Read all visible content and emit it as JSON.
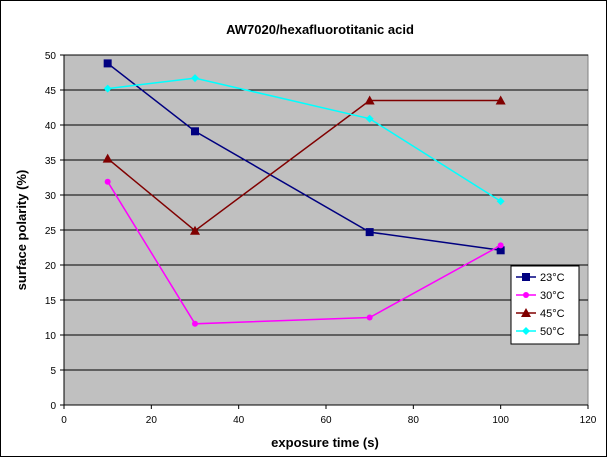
{
  "chart_data": {
    "type": "line",
    "title": "AW7020/hexafluorotitanic acid",
    "xlabel": "exposure time (s)",
    "ylabel": "surface polarity (%)",
    "xlim": [
      0,
      120
    ],
    "ylim": [
      0,
      50
    ],
    "xticks": [
      "0",
      "20",
      "40",
      "60",
      "80",
      "100",
      "120"
    ],
    "yticks": [
      "0",
      "5",
      "10",
      "15",
      "20",
      "25",
      "30",
      "35",
      "40",
      "45",
      "50"
    ],
    "grid": "horizontal",
    "plot_background": "#c0c0c0",
    "legend_position": "right",
    "series": [
      {
        "name": "23°C",
        "color": "#000080",
        "marker": "square",
        "x": [
          10,
          30,
          70,
          100
        ],
        "y": [
          48.8,
          39.1,
          24.7,
          22.1
        ]
      },
      {
        "name": "30°C",
        "color": "#ff00ff",
        "marker": "circle",
        "x": [
          10,
          30,
          70,
          100
        ],
        "y": [
          31.9,
          11.6,
          12.5,
          22.8
        ]
      },
      {
        "name": "45°C",
        "color": "#800000",
        "marker": "triangle",
        "x": [
          10,
          30,
          70,
          100
        ],
        "y": [
          35.2,
          24.9,
          43.5,
          43.5
        ]
      },
      {
        "name": "50°C",
        "color": "#00ffff",
        "marker": "diamond",
        "x": [
          10,
          30,
          70,
          100
        ],
        "y": [
          45.2,
          46.7,
          40.9,
          29.1
        ]
      }
    ]
  }
}
